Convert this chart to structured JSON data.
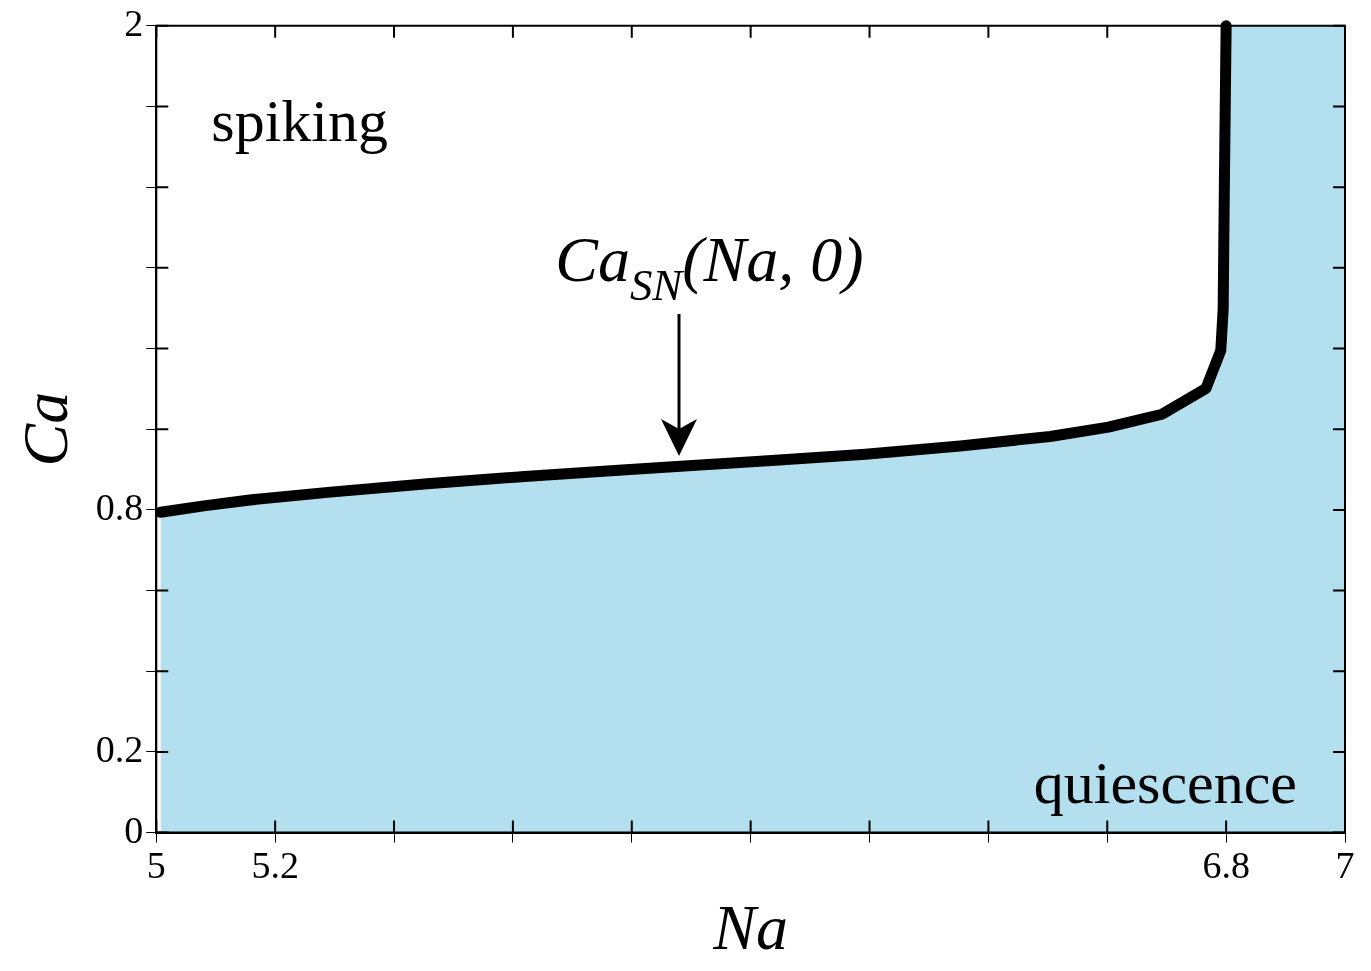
{
  "chart_data": {
    "type": "area",
    "xlabel": "Na",
    "ylabel": "Ca",
    "x": [
      5.007,
      5.08,
      5.154,
      5.293,
      5.456,
      5.62,
      5.784,
      5.882,
      6.029,
      6.193,
      6.357,
      6.504,
      6.602,
      6.692,
      6.766,
      6.791,
      6.795,
      6.797,
      6.8
    ],
    "series": [
      {
        "color": "#b3dfef",
        "values": [
          0.794,
          0.81,
          0.824,
          0.844,
          0.865,
          0.883,
          0.899,
          0.908,
          0.922,
          0.938,
          0.959,
          0.982,
          1.005,
          1.037,
          1.101,
          1.195,
          1.297,
          1.6,
          2.0
        ]
      }
    ],
    "xlim": [
      5,
      7
    ],
    "ylim": [
      0,
      2
    ],
    "xticks": [
      5,
      5.2,
      {
        "value": 5.4,
        "label": null
      },
      {
        "value": 5.6,
        "label": null
      },
      {
        "value": 5.8,
        "label": null
      },
      {
        "value": 6,
        "label": null
      },
      {
        "value": 6.2,
        "label": null
      },
      {
        "value": 6.4,
        "label": null
      },
      {
        "value": 6.6,
        "label": null
      },
      6.8,
      7
    ],
    "yticks": [
      0,
      0.2,
      {
        "value": 0.4,
        "label": null
      },
      {
        "value": 0.6,
        "label": null
      },
      0.8,
      {
        "value": 1,
        "label": null
      },
      {
        "value": 1.2,
        "label": null
      },
      {
        "value": 1.4,
        "label": null
      },
      {
        "value": 1.6,
        "label": null
      },
      {
        "value": 1.8,
        "label": null
      },
      2
    ],
    "bands": [
      {
        "axis": "x",
        "from": 6.8,
        "to": 7,
        "color": "#b3dfef"
      }
    ],
    "annotations": [
      "spiking",
      "quiescence",
      {
        "text": "Ca$_{SN}$(Na, 0)",
        "x": 5.88,
        "y": 0.91
      }
    ],
    "legend": false,
    "grid": false,
    "marker": "none",
    "line_style": "solid"
  }
}
